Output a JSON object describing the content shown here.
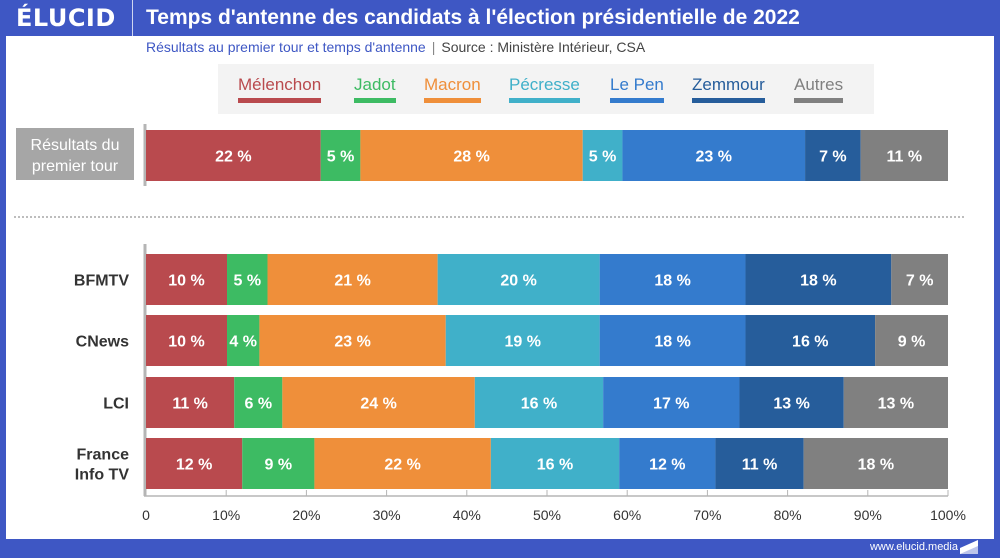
{
  "header": {
    "logo": "ÉLUCID",
    "title": "Temps d'antenne des candidats à l'élection présidentielle de 2022"
  },
  "subtitle": {
    "main": "Résultats au premier tour et temps d'antenne",
    "separator": "|",
    "source": "Source : Ministère Intérieur, CSA"
  },
  "footer": {
    "url": "www.elucid.media"
  },
  "chart_data": {
    "type": "bar",
    "orientation": "horizontal",
    "stacked": true,
    "title": "Temps d'antenne des candidats à l'élection présidentielle de 2022",
    "subtitle": "Résultats au premier tour et temps d'antenne | Source : Ministère Intérieur, CSA",
    "xlabel": "",
    "ylabel": "",
    "xlim": [
      0,
      100
    ],
    "x_ticks": [
      0,
      10,
      20,
      30,
      40,
      50,
      60,
      70,
      80,
      90,
      100
    ],
    "x_tick_labels": [
      "0",
      "10%",
      "20%",
      "30%",
      "40%",
      "50%",
      "60%",
      "70%",
      "80%",
      "90%",
      "100%"
    ],
    "grid": false,
    "legend_position": "top-center",
    "series": [
      {
        "name": "Mélenchon",
        "color": "#b94a4e"
      },
      {
        "name": "Jadot",
        "color": "#3dbb63"
      },
      {
        "name": "Macron",
        "color": "#ef8f3a"
      },
      {
        "name": "Pécresse",
        "color": "#40b0c9"
      },
      {
        "name": "Le Pen",
        "color": "#347bcd"
      },
      {
        "name": "Zemmour",
        "color": "#265d9b"
      },
      {
        "name": "Autres",
        "color": "#808080"
      }
    ],
    "groups": [
      {
        "name": "results",
        "rows": [
          {
            "label": "Résultats du premier tour",
            "values": [
              22,
              5,
              28,
              5,
              23,
              7,
              11
            ],
            "labels": [
              "22 %",
              "5 %",
              "28 %",
              "5 %",
              "23 %",
              "7 %",
              "11 %"
            ]
          }
        ]
      },
      {
        "name": "airtime",
        "rows": [
          {
            "label": "BFMTV",
            "values": [
              10,
              5,
              21,
              20,
              18,
              18,
              7
            ],
            "labels": [
              "10 %",
              "5 %",
              "21 %",
              "20 %",
              "18 %",
              "18 %",
              "7 %"
            ]
          },
          {
            "label": "CNews",
            "values": [
              10,
              4,
              23,
              19,
              18,
              16,
              9
            ],
            "labels": [
              "10 %",
              "4 %",
              "23 %",
              "19 %",
              "18 %",
              "16 %",
              "9 %"
            ]
          },
          {
            "label": "LCI",
            "values": [
              11,
              6,
              24,
              16,
              17,
              13,
              13
            ],
            "labels": [
              "11 %",
              "6 %",
              "24 %",
              "16 %",
              "17 %",
              "13 %",
              "13 %"
            ]
          },
          {
            "label": "France Info TV",
            "values": [
              12,
              9,
              22,
              16,
              12,
              11,
              18
            ],
            "labels": [
              "12 %",
              "9 %",
              "22 %",
              "16 %",
              "12 %",
              "11 %",
              "18 %"
            ]
          }
        ]
      }
    ]
  }
}
